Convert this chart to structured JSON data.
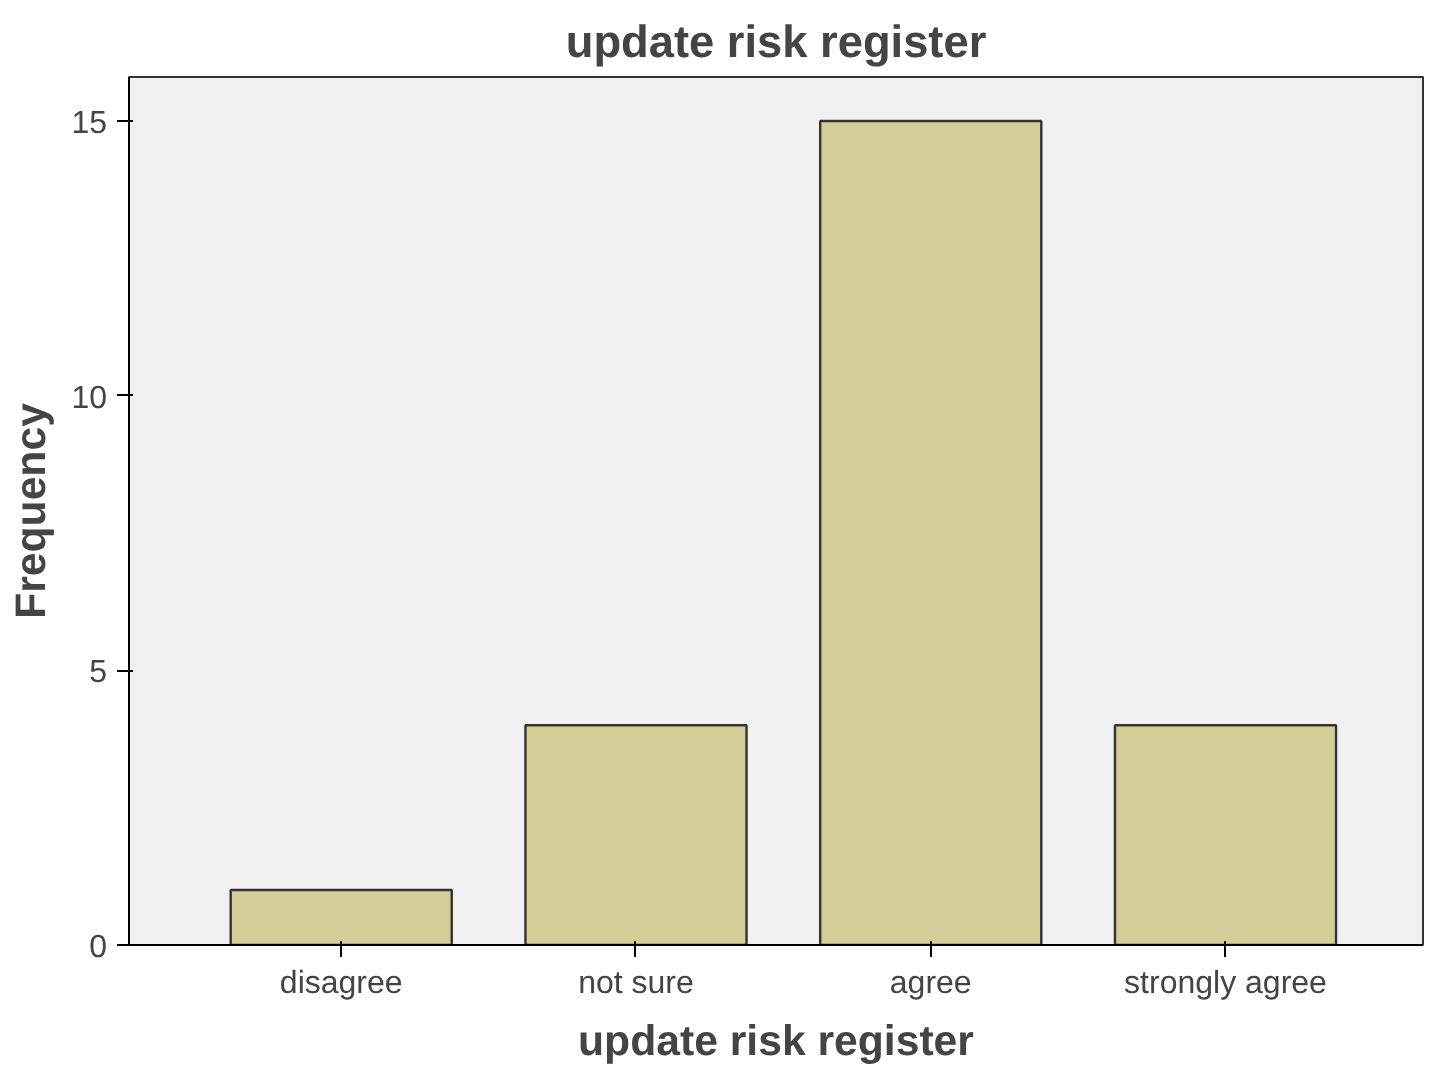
{
  "chart_data": {
    "type": "bar",
    "title": "update risk register",
    "xlabel": "update risk register",
    "ylabel": "Frequency",
    "categories": [
      "disagree",
      "not sure",
      "agree",
      "strongly agree"
    ],
    "values": [
      1,
      4,
      15,
      4
    ],
    "color": "#d3ce98",
    "ylim": [
      0,
      15.8
    ],
    "yticks": [
      0,
      5,
      10,
      15
    ],
    "grid": false
  }
}
